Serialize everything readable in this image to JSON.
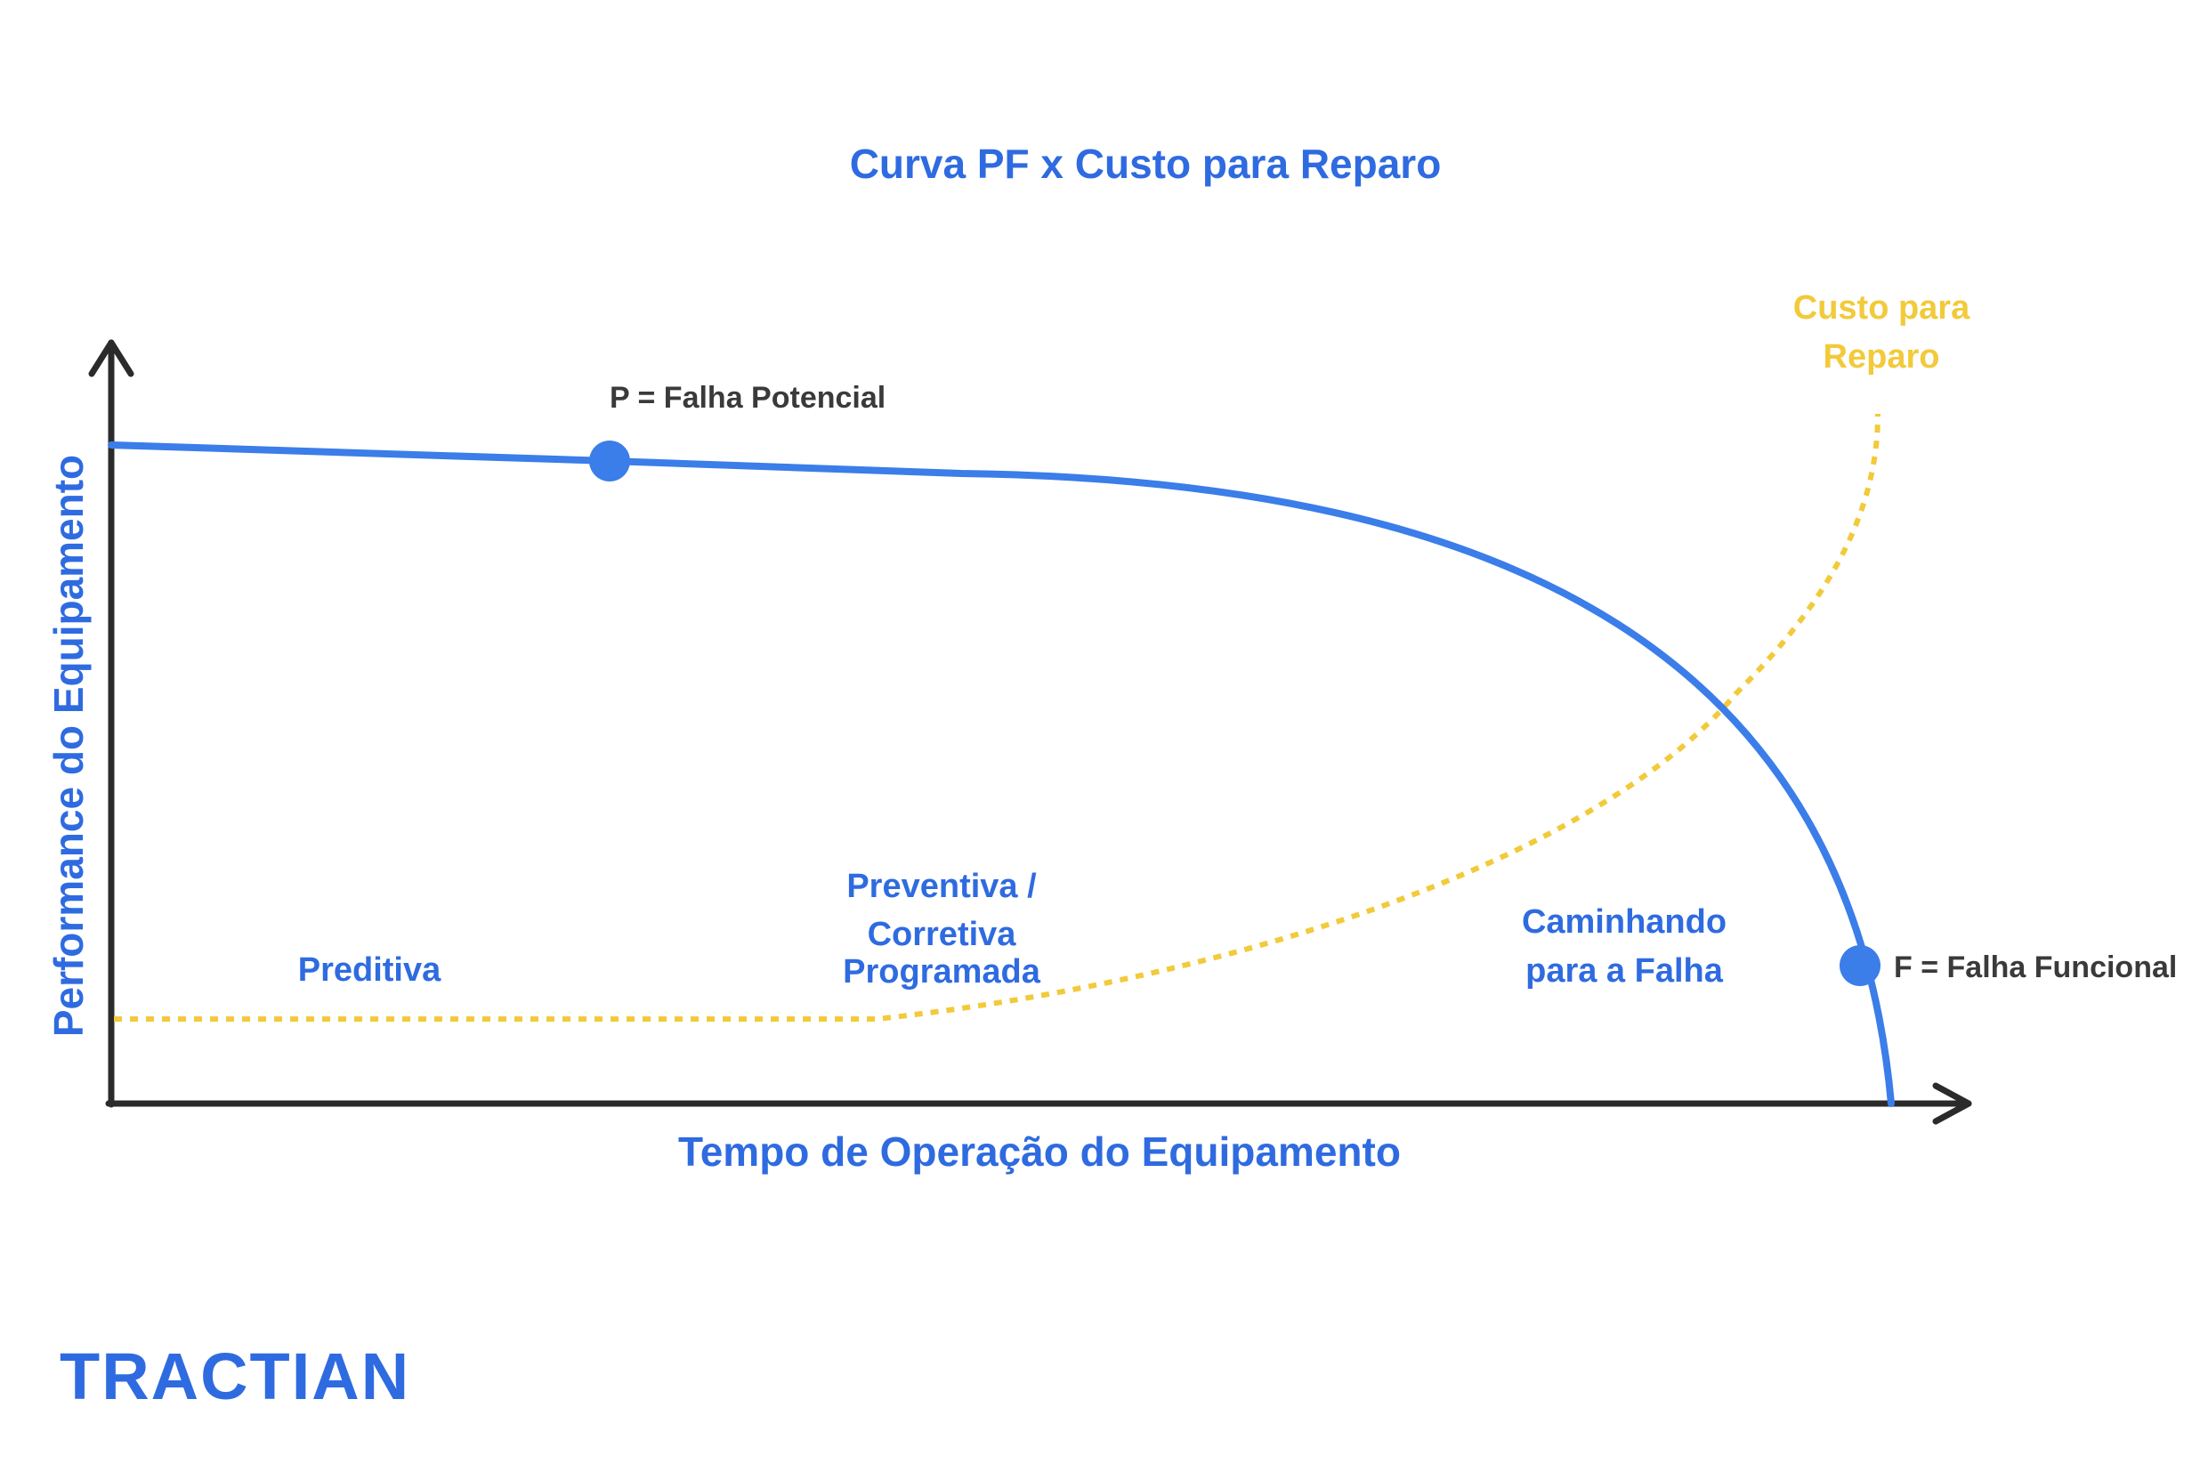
{
  "title": "Curva PF x Custo para Reparo",
  "y_axis_label": "Performance do Equipamento",
  "x_axis_label": "Tempo de Operação do Equipamento",
  "points": {
    "potential_failure": "P = Falha Potencial",
    "functional_failure": "F = Falha Funcional"
  },
  "zones": {
    "predictive": "Preditiva",
    "preventive": [
      "Preventiva /",
      "Corretiva",
      "Programada"
    ],
    "to_failure": [
      "Caminhando",
      "para a Falha"
    ]
  },
  "cost_curve_label": [
    "Custo para",
    "Reparo"
  ],
  "logo": "TRACTIAN",
  "colors": {
    "primary": "#2F6BE0",
    "cost": "#F2CA3A",
    "axis": "#2b2b2b",
    "point_label": "#3a3a3a"
  }
}
